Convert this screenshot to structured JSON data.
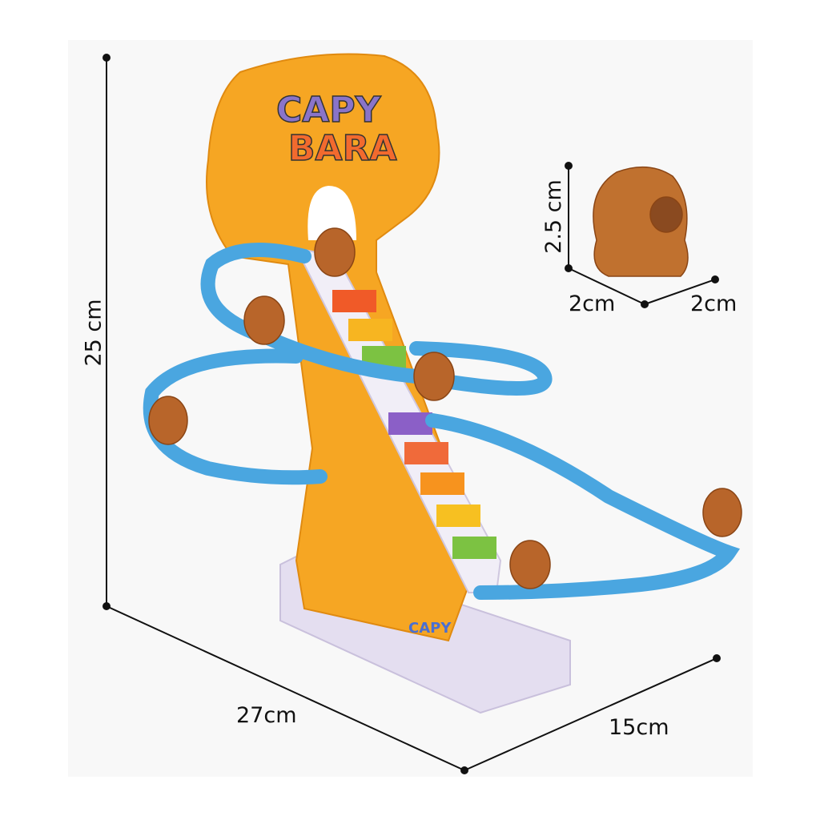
{
  "product": {
    "logo_text": "CAPY BARA",
    "base_text": "CAPY"
  },
  "dimensions": {
    "toy_height": "25 cm",
    "toy_width": "27cm",
    "toy_depth": "15cm",
    "figure_height": "2.5 cm",
    "figure_width": "2cm",
    "figure_depth": "2cm"
  },
  "colors": {
    "track": "#4aa6e0",
    "tower": "#f6a623",
    "base": "#e4def0",
    "capybara": "#b8652a",
    "dimension_line": "#111111"
  }
}
